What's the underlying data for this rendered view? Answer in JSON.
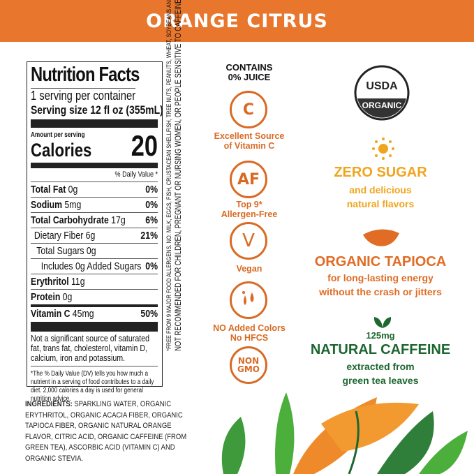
{
  "header": {
    "title": "ORANGE CITRUS",
    "color": "#e8762c"
  },
  "nutrition": {
    "title": "Nutrition Facts",
    "servings": "1 serving per container",
    "serving_size": "Serving size 12 fl oz (355mL)",
    "amount_per_serving": "Amount per serving",
    "calories_label": "Calories",
    "calories": "20",
    "dv_header": "% Daily Value *",
    "rows": [
      {
        "label": "Total Fat",
        "amount": "0g",
        "dv": "0%"
      },
      {
        "label": "Sodium",
        "amount": "5mg",
        "dv": "0%"
      },
      {
        "label": "Total Carbohydrate",
        "amount": "17g",
        "dv": "6%"
      },
      {
        "label": "Dietary Fiber",
        "amount": "6g",
        "dv": "21%"
      },
      {
        "label": "Total Sugars",
        "amount": "0g",
        "dv": ""
      },
      {
        "label": "Includes 0g Added Sugars",
        "amount": "",
        "dv": "0%"
      },
      {
        "label": "Erythritol",
        "amount": "11g",
        "dv": ""
      },
      {
        "label": "Protein",
        "amount": "0g",
        "dv": ""
      },
      {
        "label": "Vitamin C",
        "amount": "45mg",
        "dv": "50%"
      }
    ],
    "not_significant": "Not a significant source of saturated fat, trans fat, cholesterol, vitamin D, calcium, iron and potassium.",
    "footnote": "*The % Daily Value (DV) tells you how much a nutrient in a serving of food contributes to a daily diet. 2,000 calories a day is used for general nutrition advice."
  },
  "allergen_note": {
    "line1": "*FREE FROM 9 MAJOR FOOD ALLERGENS. NO: MILK, EGGS, FISH, CRUSTACEAN SHELLFISH, TREE NUTS, PEANUTS, WHEAT, SOYBEANS AND SESAME.",
    "line2": "NOT RECOMMENDED FOR CHILDREN, PREGNANT OR NURSING WOMEN, OR PEOPLE SENSITIVE TO CAFFEINE."
  },
  "ingredients": {
    "label": "INGREDIENTS:",
    "text": " SPARKLING WATER, ORGANIC ERYTHRITOL, ORGANIC ACACIA FIBER, ORGANIC TAPIOCA FIBER, ORGANIC NATURAL ORANGE FLAVOR, CITRIC ACID, ORGANIC CAFFEINE (FROM GREEN TEA), ASCORBIC ACID (VITAMIN C) AND ORGANIC STEVIA."
  },
  "badges": {
    "juice": "CONTAINS 0% JUICE",
    "items": [
      {
        "icon": "orange-c-icon",
        "glyph": "C",
        "label": "Excellent Source of Vitamin C"
      },
      {
        "icon": "af-icon",
        "glyph": "AF",
        "label": "Top 9* Allergen-Free"
      },
      {
        "icon": "v-icon",
        "glyph": "V",
        "label": "Vegan"
      },
      {
        "icon": "drops-icon",
        "glyph": "",
        "label1": "NO Added Colors",
        "label2": "No HFCS"
      },
      {
        "icon": "non-gmo-icon",
        "glyph1": "NON",
        "glyph2": "GMO"
      }
    ]
  },
  "usda": {
    "top": "USDA",
    "bottom": "ORGANIC"
  },
  "features": {
    "zero_sugar": {
      "title": "ZERO SUGAR",
      "l1": "and delicious",
      "l2": "natural flavors",
      "color": "#f0a51f"
    },
    "tapioca": {
      "title": "ORGANIC TAPIOCA",
      "l1": "for long-lasting energy",
      "l2": "without the crash or jitters",
      "color": "#e06c25"
    },
    "caffeine": {
      "amount": "125mg",
      "title": "NATURAL CAFFEINE",
      "l1": "extracted from",
      "l2": "green tea leaves",
      "color": "#1d6630"
    }
  }
}
